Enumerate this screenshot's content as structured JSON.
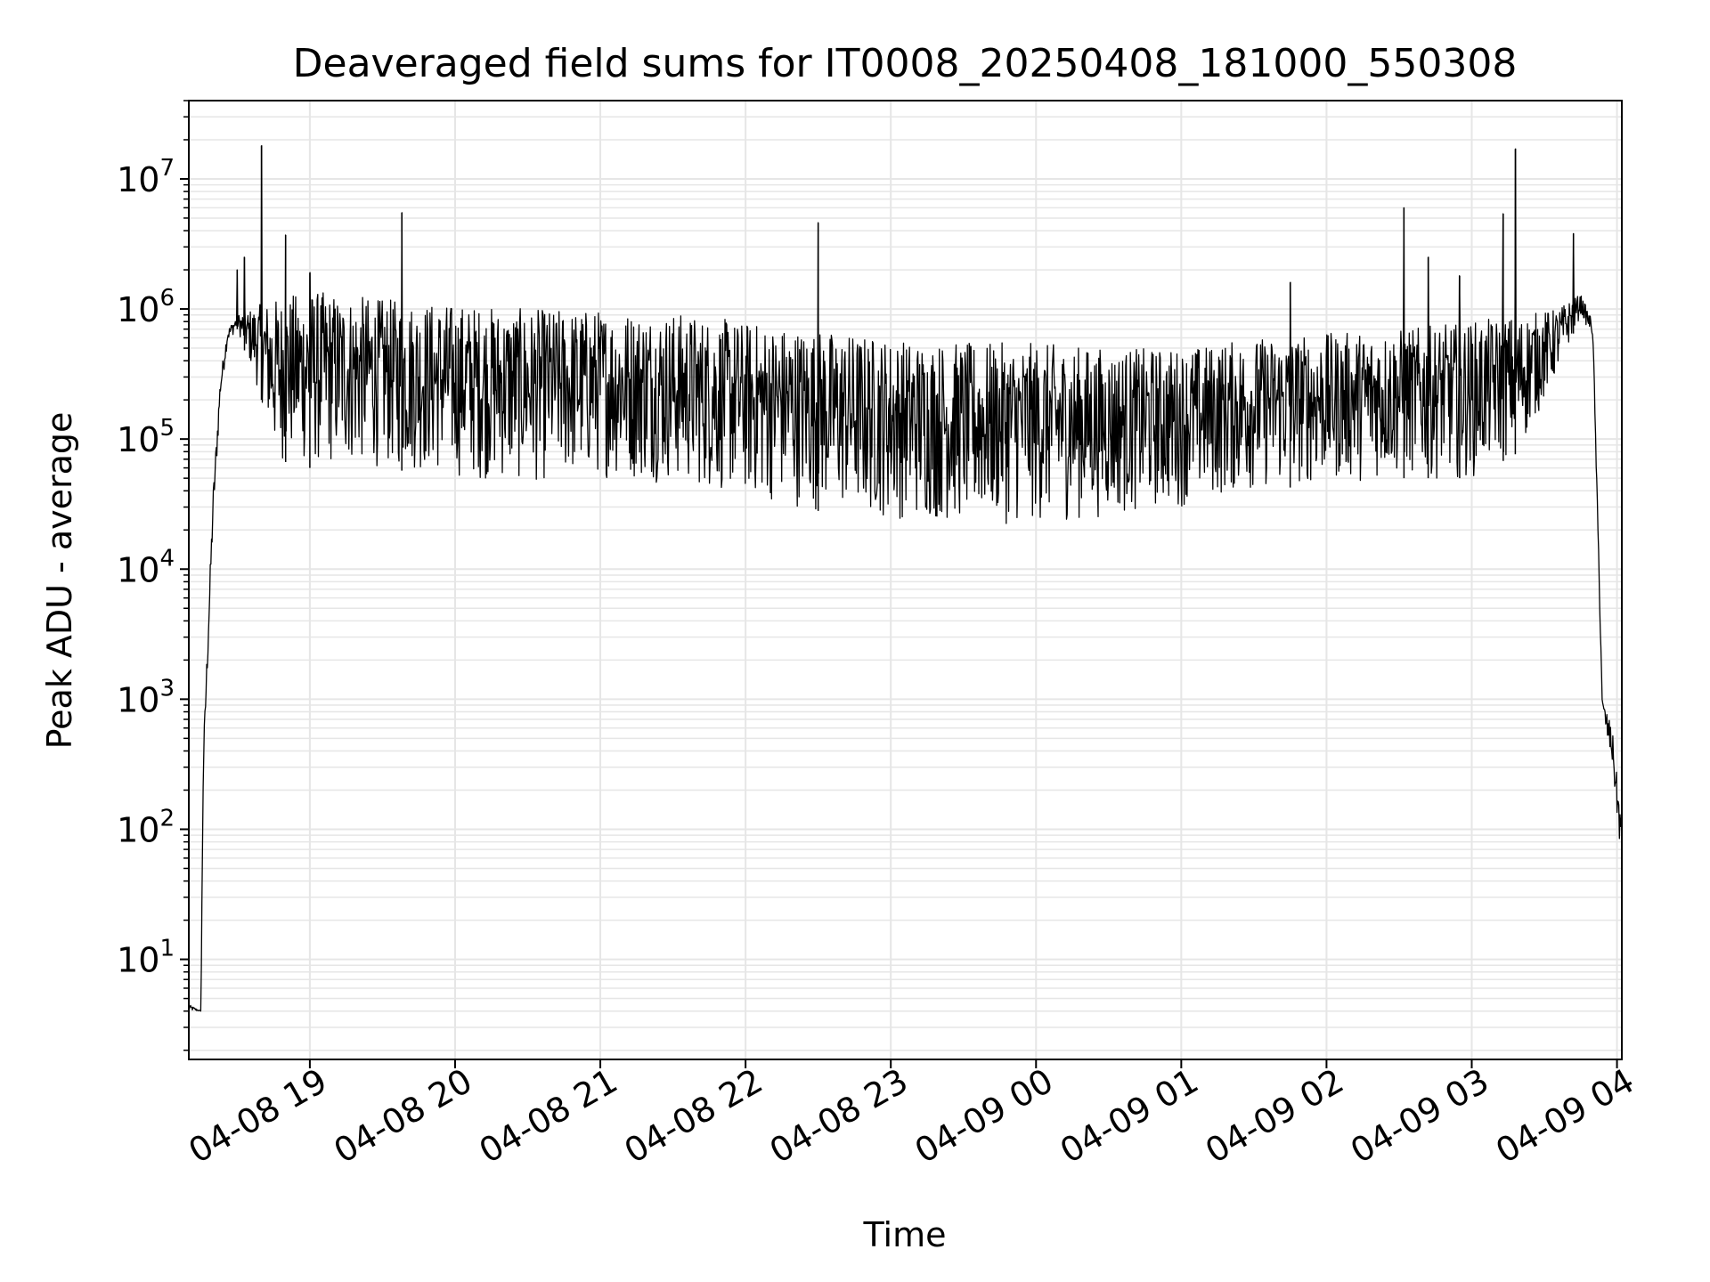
{
  "chart_data": {
    "type": "line",
    "title": "Deaveraged field sums for IT0008_20250408_181000_550308",
    "xlabel": "Time",
    "ylabel": "Peak ADU - average",
    "yscale": "log",
    "ylim": [
      1.7,
      40000000
    ],
    "xlim": [
      "2025-04-08 18:10",
      "2025-04-09 04:02"
    ],
    "grid": true,
    "x_ticks": [
      {
        "t": "2025-04-08 19:00",
        "label": "04-08 19"
      },
      {
        "t": "2025-04-08 20:00",
        "label": "04-08 20"
      },
      {
        "t": "2025-04-08 21:00",
        "label": "04-08 21"
      },
      {
        "t": "2025-04-08 22:00",
        "label": "04-08 22"
      },
      {
        "t": "2025-04-08 23:00",
        "label": "04-08 23"
      },
      {
        "t": "2025-04-09 00:00",
        "label": "04-09 00"
      },
      {
        "t": "2025-04-09 01:00",
        "label": "04-09 01"
      },
      {
        "t": "2025-04-09 02:00",
        "label": "04-09 02"
      },
      {
        "t": "2025-04-09 03:00",
        "label": "04-09 03"
      },
      {
        "t": "2025-04-09 04:00",
        "label": "04-09 04"
      }
    ],
    "y_ticks": [
      {
        "value": 10,
        "base": "10",
        "exp": "1"
      },
      {
        "value": 100,
        "base": "10",
        "exp": "2"
      },
      {
        "value": 1000,
        "base": "10",
        "exp": "3"
      },
      {
        "value": 10000,
        "base": "10",
        "exp": "4"
      },
      {
        "value": 100000,
        "base": "10",
        "exp": "5"
      },
      {
        "value": 1000000,
        "base": "10",
        "exp": "6"
      },
      {
        "value": 10000000,
        "base": "10",
        "exp": "7"
      }
    ],
    "series": [
      {
        "color": "#000000",
        "envelope": [
          {
            "t": "2025-04-08 18:10",
            "low": 4,
            "high": 4.5
          },
          {
            "t": "2025-04-08 18:15",
            "low": 4,
            "high": 4
          },
          {
            "t": "2025-04-08 18:16",
            "low": 250,
            "high": 400
          },
          {
            "t": "2025-04-08 18:20",
            "low": 20000,
            "high": 40000
          },
          {
            "t": "2025-04-08 18:23",
            "low": 200000,
            "high": 300000
          },
          {
            "t": "2025-04-08 18:26",
            "low": 550000,
            "high": 700000
          },
          {
            "t": "2025-04-08 18:30",
            "low": 700000,
            "high": 900000
          },
          {
            "t": "2025-04-08 18:40",
            "low": 200000,
            "high": 1100000
          },
          {
            "t": "2025-04-08 18:45",
            "low": 70000,
            "high": 1200000
          },
          {
            "t": "2025-04-08 19:00",
            "low": 60000,
            "high": 1400000
          },
          {
            "t": "2025-04-08 19:30",
            "low": 60000,
            "high": 1200000
          },
          {
            "t": "2025-04-08 20:00",
            "low": 50000,
            "high": 1100000
          },
          {
            "t": "2025-04-08 20:30",
            "low": 45000,
            "high": 1000000
          },
          {
            "t": "2025-04-08 21:00",
            "low": 50000,
            "high": 1000000
          },
          {
            "t": "2025-04-08 21:30",
            "low": 45000,
            "high": 950000
          },
          {
            "t": "2025-04-08 22:00",
            "low": 35000,
            "high": 800000
          },
          {
            "t": "2025-04-08 22:30",
            "low": 28000,
            "high": 700000
          },
          {
            "t": "2025-04-08 23:00",
            "low": 24000,
            "high": 600000
          },
          {
            "t": "2025-04-08 23:30",
            "low": 22000,
            "high": 550000
          },
          {
            "t": "2025-04-09 00:00",
            "low": 22000,
            "high": 550000
          },
          {
            "t": "2025-04-09 00:30",
            "low": 25000,
            "high": 500000
          },
          {
            "t": "2025-04-09 01:00",
            "low": 30000,
            "high": 500000
          },
          {
            "t": "2025-04-09 01:30",
            "low": 40000,
            "high": 600000
          },
          {
            "t": "2025-04-09 02:00",
            "low": 45000,
            "high": 650000
          },
          {
            "t": "2025-04-09 02:30",
            "low": 50000,
            "high": 700000
          },
          {
            "t": "2025-04-09 03:00",
            "low": 50000,
            "high": 800000
          },
          {
            "t": "2025-04-09 03:20",
            "low": 80000,
            "high": 900000
          },
          {
            "t": "2025-04-09 03:35",
            "low": 300000,
            "high": 1000000
          },
          {
            "t": "2025-04-09 03:45",
            "low": 900000,
            "high": 1300000
          },
          {
            "t": "2025-04-09 03:50",
            "low": 600000,
            "high": 800000
          },
          {
            "t": "2025-04-09 03:54",
            "low": 700,
            "high": 1000
          },
          {
            "t": "2025-04-09 03:58",
            "low": 300,
            "high": 600
          },
          {
            "t": "2025-04-09 04:00",
            "low": 120,
            "high": 250
          },
          {
            "t": "2025-04-09 04:02",
            "low": 50,
            "high": 120
          }
        ],
        "spikes": [
          {
            "t": "2025-04-08 18:30",
            "value": 2000000
          },
          {
            "t": "2025-04-08 18:33",
            "value": 2500000
          },
          {
            "t": "2025-04-08 18:40",
            "value": 18000000
          },
          {
            "t": "2025-04-08 18:50",
            "value": 3700000
          },
          {
            "t": "2025-04-08 19:00",
            "value": 1900000
          },
          {
            "t": "2025-04-08 19:38",
            "value": 5500000
          },
          {
            "t": "2025-04-08 22:30",
            "value": 4600000
          },
          {
            "t": "2025-04-09 01:45",
            "value": 1600000
          },
          {
            "t": "2025-04-09 02:32",
            "value": 6000000
          },
          {
            "t": "2025-04-09 02:42",
            "value": 2500000
          },
          {
            "t": "2025-04-09 02:55",
            "value": 1800000
          },
          {
            "t": "2025-04-09 03:13",
            "value": 5400000
          },
          {
            "t": "2025-04-09 03:18",
            "value": 17000000
          },
          {
            "t": "2025-04-09 03:42",
            "value": 3800000
          }
        ]
      }
    ]
  }
}
